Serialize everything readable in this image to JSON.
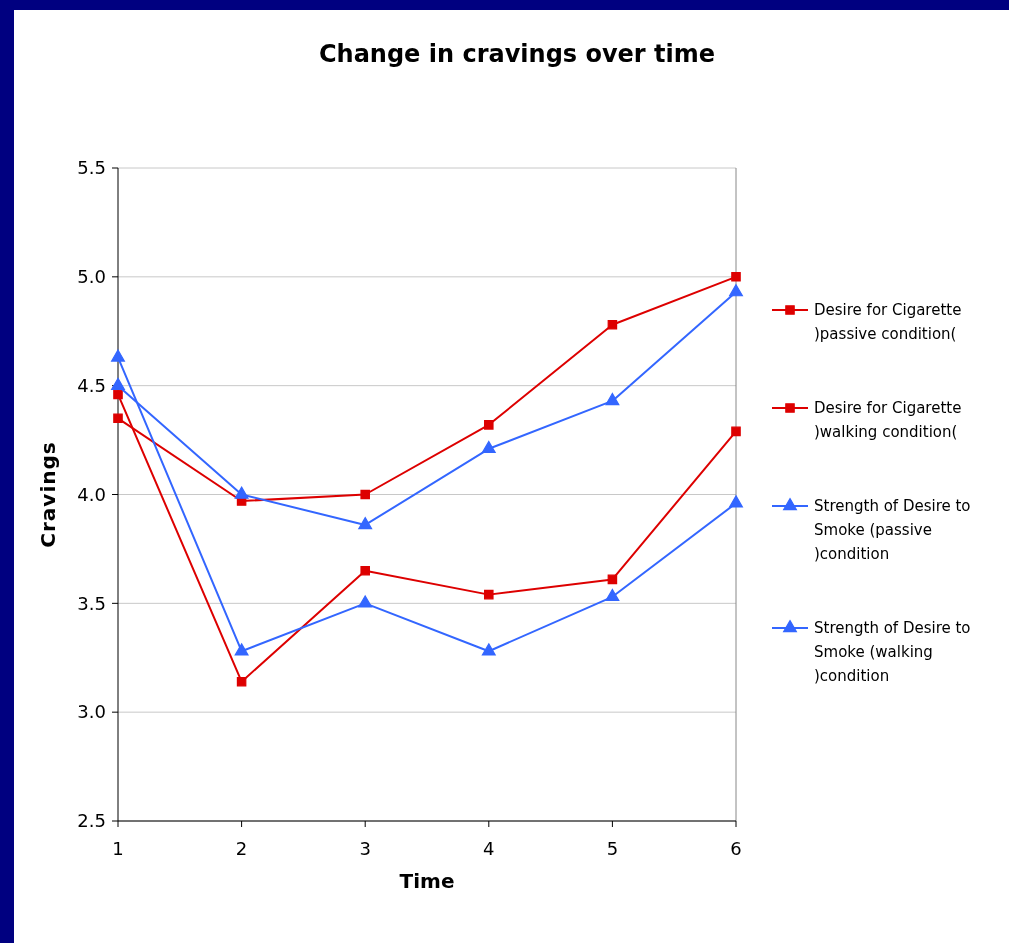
{
  "chart_data": {
    "type": "line",
    "title": "Change in cravings over time",
    "xlabel": "Time",
    "ylabel": "Cravings",
    "x": [
      1,
      2,
      3,
      4,
      5,
      6
    ],
    "xlim": [
      1,
      6
    ],
    "xticks": [
      1,
      2,
      3,
      4,
      5,
      6
    ],
    "ylim": [
      2.5,
      5.5
    ],
    "yticks": [
      {
        "value": 2.5,
        "label": "2.5"
      },
      {
        "value": 3,
        "label": "3.0"
      },
      {
        "value": 3.5,
        "label": "3.5"
      },
      {
        "value": 4,
        "label": "4.0"
      },
      {
        "value": 4.5,
        "label": "4.5"
      },
      {
        "value": 5,
        "label": "5.0"
      },
      {
        "value": 5.5,
        "label": "5.5"
      }
    ],
    "grid": "y",
    "legend": "right",
    "line_style": "solid",
    "series": [
      {
        "name": "Desire for Cigarette )passive condition(",
        "color": "#dd0000",
        "marker": "square",
        "values": [
          4.35,
          3.97,
          4.0,
          4.32,
          4.78,
          5.0
        ]
      },
      {
        "name": "Desire for Cigarette )walking condition(",
        "color": "#dd0000",
        "marker": "square",
        "values": [
          4.46,
          3.14,
          3.65,
          3.54,
          3.61,
          4.29
        ]
      },
      {
        "name": "Strength of Desire to Smoke (passive )condition",
        "color": "#3366ff",
        "marker": "triangle",
        "values": [
          4.5,
          4.0,
          3.86,
          4.21,
          4.43,
          4.93
        ]
      },
      {
        "name": "Strength of Desire to Smoke (walking )condition",
        "color": "#3366ff",
        "marker": "triangle",
        "values": [
          4.63,
          3.28,
          3.5,
          3.28,
          3.53,
          3.96
        ]
      }
    ]
  }
}
